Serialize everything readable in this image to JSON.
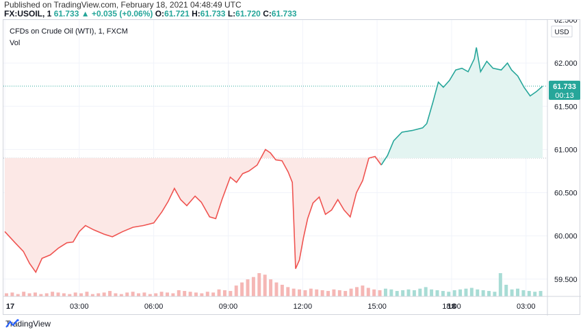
{
  "publish_line": "Published on TradingView.com, February 18, 2021 04:48:49 UTC",
  "quote": {
    "symbol": "FX:USOIL, 1",
    "last": "61.733",
    "change": "+0.035 (+0.06%)",
    "o_label": "O:",
    "o": "61.721",
    "h_label": "H:",
    "h": "61.733",
    "l_label": "L:",
    "l": "61.720",
    "c_label": "C:",
    "c": "61.733"
  },
  "legend": {
    "title": "CFDs on Crude Oil (WTI), 1, FXCM",
    "vol": "Vol"
  },
  "currency": "USD",
  "price_tag": {
    "price": "61.733",
    "countdown": "00:13"
  },
  "brand": "TradingView",
  "colors": {
    "up": "#26a69a",
    "down": "#ef5350",
    "up_fill": "#e3f4f1",
    "down_fill": "#fce8e6"
  },
  "chart_data": {
    "type": "area",
    "baseline": 60.9,
    "ylim": [
      59.3,
      62.5
    ],
    "y_ticks": [
      59.5,
      60.0,
      60.5,
      61.0,
      61.5,
      62.0,
      62.5
    ],
    "y_tick_labels": [
      "59.500",
      "60.000",
      "60.500",
      "61.000",
      "61.500",
      "62.000",
      "62.500"
    ],
    "x_range": [
      0,
      1305
    ],
    "x_ticks": [
      {
        "t": 0,
        "label": "17",
        "bold": true
      },
      {
        "t": 180,
        "label": "03:00"
      },
      {
        "t": 360,
        "label": "06:00"
      },
      {
        "t": 540,
        "label": "09:00"
      },
      {
        "t": 720,
        "label": "12:00"
      },
      {
        "t": 900,
        "label": "15:00"
      },
      {
        "t": 1080,
        "label": "18:00"
      },
      {
        "t": 1080,
        "label": ""
      },
      {
        "t": 1080,
        "label": ""
      },
      {
        "t": 1080,
        "label": ""
      }
    ],
    "x_ticks_day2": [
      {
        "t": 1080,
        "label": "18",
        "bold": true
      },
      {
        "t": 1260,
        "label": "03:00"
      }
    ],
    "series": [
      {
        "values": [
          [
            0,
            60.05
          ],
          [
            25,
            59.92
          ],
          [
            45,
            59.82
          ],
          [
            60,
            59.68
          ],
          [
            75,
            59.58
          ],
          [
            90,
            59.74
          ],
          [
            110,
            59.78
          ],
          [
            130,
            59.86
          ],
          [
            150,
            59.92
          ],
          [
            165,
            59.93
          ],
          [
            180,
            60.05
          ],
          [
            195,
            60.12
          ],
          [
            215,
            60.07
          ],
          [
            240,
            60.02
          ],
          [
            260,
            59.99
          ],
          [
            285,
            60.05
          ],
          [
            310,
            60.1
          ],
          [
            335,
            60.12
          ],
          [
            360,
            60.15
          ],
          [
            380,
            60.28
          ],
          [
            395,
            60.4
          ],
          [
            410,
            60.55
          ],
          [
            425,
            60.42
          ],
          [
            440,
            60.35
          ],
          [
            460,
            60.46
          ],
          [
            475,
            60.39
          ],
          [
            495,
            60.22
          ],
          [
            510,
            60.2
          ],
          [
            525,
            60.42
          ],
          [
            545,
            60.68
          ],
          [
            560,
            60.62
          ],
          [
            575,
            60.72
          ],
          [
            590,
            60.75
          ],
          [
            610,
            60.82
          ],
          [
            630,
            61.0
          ],
          [
            642,
            60.96
          ],
          [
            655,
            60.88
          ],
          [
            670,
            60.87
          ],
          [
            685,
            60.74
          ],
          [
            695,
            60.62
          ],
          [
            703,
            59.62
          ],
          [
            712,
            59.72
          ],
          [
            722,
            59.98
          ],
          [
            732,
            60.2
          ],
          [
            745,
            60.38
          ],
          [
            760,
            60.45
          ],
          [
            775,
            60.25
          ],
          [
            790,
            60.3
          ],
          [
            805,
            60.42
          ],
          [
            820,
            60.3
          ],
          [
            835,
            60.22
          ],
          [
            850,
            60.5
          ],
          [
            865,
            60.64
          ],
          [
            880,
            60.9
          ],
          [
            895,
            60.92
          ],
          [
            910,
            60.82
          ]
        ]
      },
      {
        "values": [
          [
            910,
            60.82
          ],
          [
            925,
            60.93
          ],
          [
            940,
            61.1
          ],
          [
            960,
            61.2
          ],
          [
            985,
            61.22
          ],
          [
            1010,
            61.25
          ],
          [
            1020,
            61.3
          ],
          [
            1035,
            61.55
          ],
          [
            1048,
            61.78
          ],
          [
            1060,
            61.72
          ],
          [
            1075,
            61.8
          ],
          [
            1090,
            61.92
          ],
          [
            1105,
            61.94
          ],
          [
            1120,
            61.9
          ],
          [
            1135,
            62.05
          ],
          [
            1140,
            62.18
          ],
          [
            1150,
            61.9
          ],
          [
            1165,
            62.02
          ],
          [
            1180,
            61.94
          ],
          [
            1200,
            61.92
          ],
          [
            1215,
            62.0
          ],
          [
            1225,
            61.92
          ],
          [
            1240,
            61.85
          ],
          [
            1255,
            61.72
          ],
          [
            1270,
            61.62
          ],
          [
            1285,
            61.67
          ],
          [
            1300,
            61.733
          ]
        ]
      }
    ],
    "volume": [
      4,
      5,
      3,
      6,
      4,
      5,
      3,
      4,
      6,
      5,
      4,
      3,
      5,
      4,
      6,
      3,
      4,
      5,
      7,
      4,
      3,
      5,
      6,
      4,
      5,
      3,
      4,
      6,
      5,
      4,
      8,
      7,
      6,
      5,
      4,
      6,
      5,
      9,
      8,
      7,
      14,
      18,
      22,
      25,
      30,
      28,
      22,
      18,
      15,
      12,
      10,
      9,
      8,
      10,
      9,
      8,
      7,
      9,
      8,
      7,
      10,
      12,
      14,
      11,
      9,
      8,
      10,
      9,
      7,
      8,
      9,
      8,
      10,
      12,
      9,
      8,
      7,
      6,
      8,
      9,
      10,
      11,
      9,
      8,
      7,
      6,
      30,
      15,
      9,
      10,
      8,
      7,
      6,
      7
    ]
  }
}
